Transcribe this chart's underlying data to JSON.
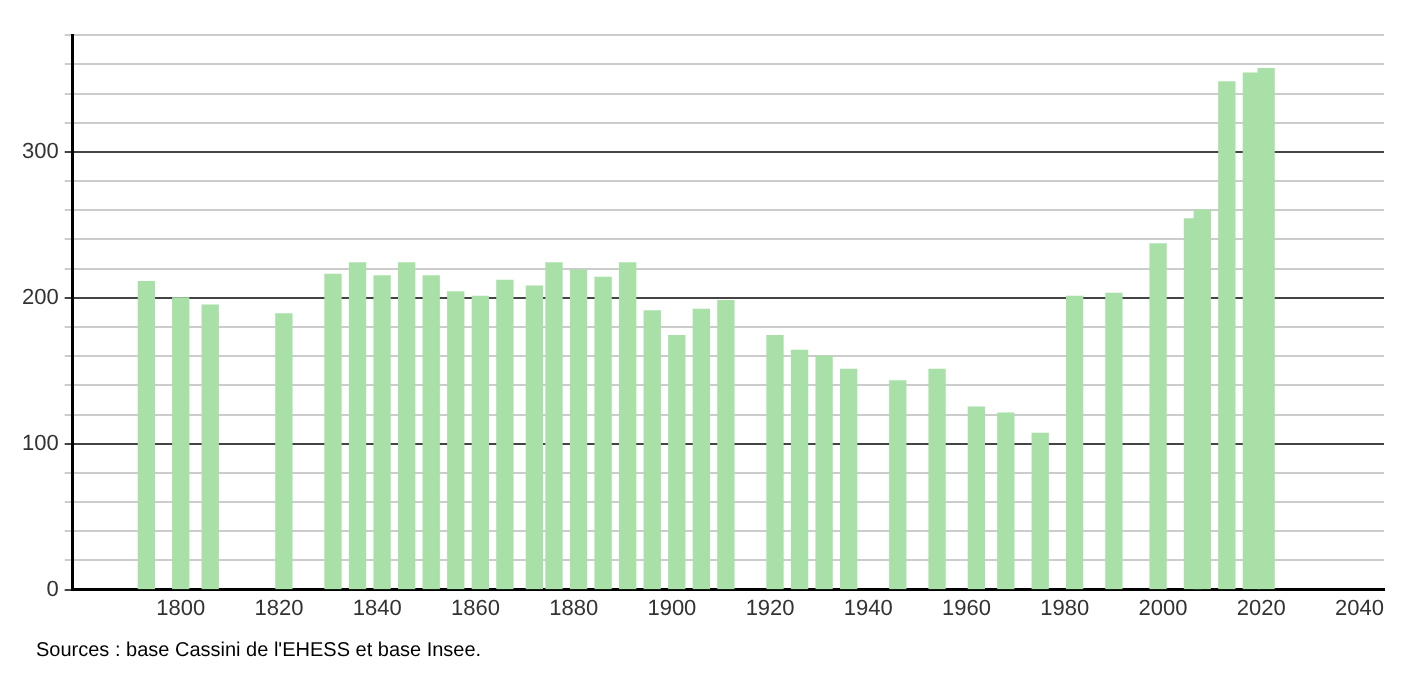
{
  "chart_data": {
    "type": "bar",
    "x": [
      1793,
      1800,
      1806,
      1821,
      1831,
      1836,
      1841,
      1846,
      1851,
      1856,
      1861,
      1866,
      1872,
      1876,
      1881,
      1886,
      1891,
      1896,
      1901,
      1906,
      1911,
      1921,
      1926,
      1931,
      1936,
      1946,
      1954,
      1962,
      1968,
      1975,
      1982,
      1990,
      1999,
      2006,
      2008,
      2013,
      2018,
      2021
    ],
    "values": [
      211,
      200,
      195,
      189,
      216,
      224,
      215,
      224,
      215,
      204,
      201,
      212,
      208,
      224,
      219,
      214,
      224,
      191,
      174,
      192,
      198,
      174,
      164,
      160,
      151,
      143,
      151,
      125,
      121,
      107,
      201,
      203,
      237,
      254,
      260,
      348,
      354,
      357
    ],
    "color": "#a8e0a8",
    "xlim": [
      1778,
      2045
    ],
    "xticks": [
      1800,
      1820,
      1840,
      1860,
      1880,
      1900,
      1920,
      1940,
      1960,
      1980,
      2000,
      2020,
      2040
    ],
    "ylim": [
      0,
      380
    ],
    "yticks": [
      0,
      {
        "value": 20,
        "label": null
      },
      {
        "value": 40,
        "label": null
      },
      {
        "value": 60,
        "label": null
      },
      {
        "value": 80,
        "label": null
      },
      100,
      {
        "value": 120,
        "label": null
      },
      {
        "value": 140,
        "label": null
      },
      {
        "value": 160,
        "label": null
      },
      {
        "value": 180,
        "label": null
      },
      200,
      {
        "value": 220,
        "label": null
      },
      {
        "value": 240,
        "label": null
      },
      {
        "value": 260,
        "label": null
      },
      {
        "value": 280,
        "label": null
      },
      300,
      {
        "value": 320,
        "label": null
      },
      {
        "value": 340,
        "label": null
      },
      {
        "value": 360,
        "label": null
      },
      {
        "value": 380,
        "label": null
      }
    ],
    "grid": "y",
    "annotations": [
      "Sources : base Cassini de l'EHESS et base Insee."
    ]
  }
}
